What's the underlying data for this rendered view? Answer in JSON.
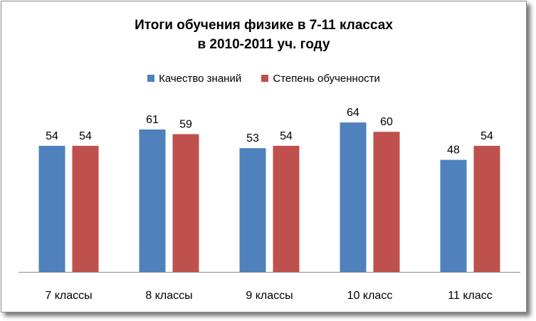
{
  "title": [
    "Итоги обучения физике в 7-11 классах",
    "в 2010-2011 уч. году"
  ],
  "chart_data": {
    "type": "bar",
    "title": "Итоги обучения физике в 7-11 классах в 2010-2011 уч. году",
    "categories": [
      "7 классы",
      "8 классы",
      "9 классы",
      "10 класс",
      "11 класс"
    ],
    "series": [
      {
        "name": "Качество знаний",
        "color": "#4f81bd",
        "values": [
          54,
          61,
          53,
          64,
          48
        ]
      },
      {
        "name": "Степень обученности",
        "color": "#c0504d",
        "values": [
          54,
          59,
          54,
          60,
          54
        ]
      }
    ],
    "ylim": [
      0,
      75
    ],
    "grid": false,
    "legend": "top",
    "data_labels": true
  }
}
